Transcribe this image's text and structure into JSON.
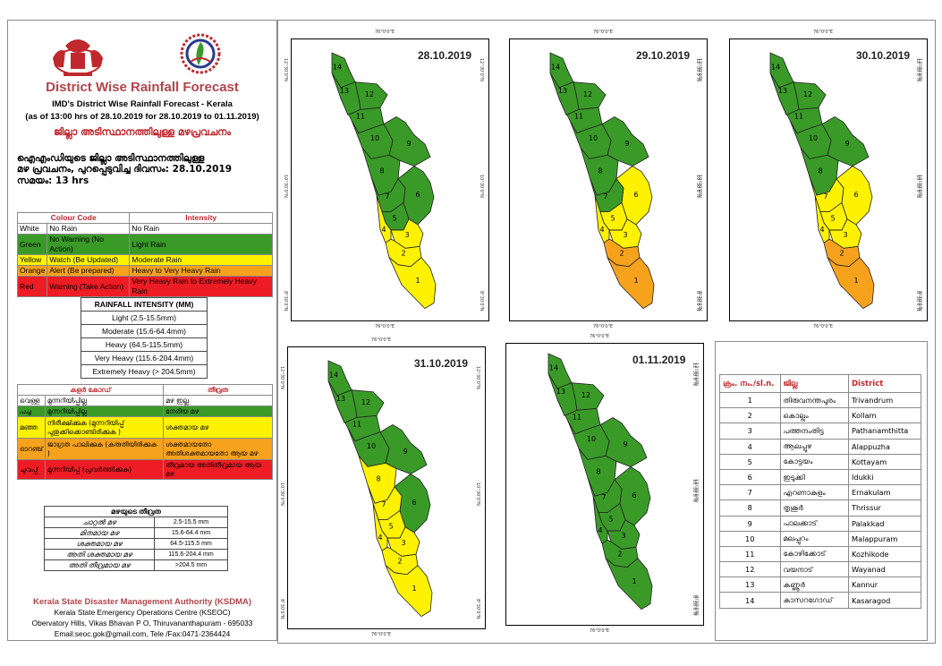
{
  "header": {
    "title": "District Wise Rainfall Forecast",
    "subtitle": "IMD's District Wise Rainfall Forecast - Kerala",
    "range": "(as of 13:00 hrs of 28.10.2019  for 28.10.2019  to 01.11.2019)",
    "mal_title": "ജില്ലാ അടിസ്ഥാനത്തിലുള്ള മഴപ്രവചനം",
    "mal_line1": "ഐഎംഡിയുടെ ജില്ലാ അടിസ്ഥാനത്തിലുള്ള",
    "mal_line2": "മഴ പ്രവചനം, പുറപ്പെടുവിച്ച ദിവസം: 28.10.2019",
    "mal_line3": "സമയം: 13 hrs"
  },
  "colors": {
    "White": "#ffffff",
    "Green": "#3a9a28",
    "Yellow": "#fef200",
    "Orange": "#f7a21d",
    "Red": "#ee1c24",
    "title_red": "#b2454b"
  },
  "legend_en": {
    "headers": [
      "Colour Code",
      "Intensity"
    ],
    "rows": [
      {
        "color": "White",
        "name": "White",
        "warning": "No Rain",
        "intensity": "No Rain"
      },
      {
        "color": "Green",
        "name": "Green",
        "warning": "No Warning (No Action)",
        "intensity": "Light Rain"
      },
      {
        "color": "Yellow",
        "name": "Yellow",
        "warning": "Watch (Be Updated)",
        "intensity": "Moderate Rain"
      },
      {
        "color": "Orange",
        "name": "Orange",
        "warning": "Alert (Be prepared)",
        "intensity": "Heavy to Very Heavy Rain"
      },
      {
        "color": "Red",
        "name": "Red",
        "warning": "Warning (Take Action)",
        "intensity": "Very Heavy Rain to Extremely Heavy Rain"
      }
    ]
  },
  "intensity_en": {
    "header": "RAINFALL INTENSITY (MM)",
    "rows": [
      "Light (2.5-15.5mm)",
      "Moderate (15.6-64.4mm)",
      "Heavy (64.5-115.5mm)",
      "Very Heavy (115.6-204.4mm)",
      "Extremely Heavy (> 204.5mm)"
    ]
  },
  "legend_ml": {
    "headers": [
      "കളർ കോഡ്",
      "തീവ്രത"
    ],
    "rows": [
      {
        "color": "White",
        "name": "വെള്ള",
        "warning": "മുന്നറിയിപ്പില്ല",
        "intensity": "മഴ ഇല്ല"
      },
      {
        "color": "Green",
        "name": "പച്ച",
        "warning": "മുന്നറിയിപ്പില്ല",
        "intensity": "നേരിയ മഴ"
      },
      {
        "color": "Yellow",
        "name": "മഞ്ഞ",
        "warning": "നിരീക്ഷിക്കുക (മുന്നറിയിപ്പ് പുതുക്കിക്കൊണ്ടിരിക്കുക )",
        "intensity": "ശക്തമായ മഴ"
      },
      {
        "color": "Orange",
        "name": "ഓറഞ്ച്",
        "warning": "ജാഗ്രത പാലിക്കുക (കരുതിയിരിക്കുക )",
        "intensity": "ശക്തമായതോ അതിശക്തമായതോ ആയ മഴ"
      },
      {
        "color": "Red",
        "name": "ചുവപ്പ്",
        "warning": "മുന്നറിയിപ്പ് (പ്രവർത്തിക്കുക)",
        "intensity": "തീവ്രമായ അതിതീവ്രമായ ആയ മഴ"
      }
    ]
  },
  "intensity_ml": {
    "header": "മഴയുടെ തീവ്രത",
    "rows": [
      {
        "label": "ചാറ്റൽ മഴ",
        "value": "2.5-15.5 mm"
      },
      {
        "label": "മിതമായ മഴ",
        "value": "15.6-64.4 mm"
      },
      {
        "label": "ശക്തമായ മഴ",
        "value": "64.5-115.5 mm"
      },
      {
        "label": "അതി ശക്തമായ മഴ",
        "value": "115.6-204.4 mm"
      },
      {
        "label": "അതി തീവ്രമായ മഴ",
        "value": ">204.5 mm"
      }
    ]
  },
  "footer": {
    "org": "Kerala State Disaster Management Authority (KSDMA)",
    "line1": "Kerala State Emergency Operations Centre (KSEOC)",
    "line2": "Obervatory Hills, Vikas Bhavan P O, Thiruvananthapuram - 695033",
    "line3": "Email:seoc.gok@gmail.com, Tele /Fax:0471-2364424"
  },
  "maps": {
    "tick_top": "76°0'0\"E",
    "tick_side": [
      "12°30'0\"N",
      "10°30'0\"N",
      "8°30'0\"N"
    ],
    "days": [
      {
        "date": "28.10.2019",
        "districts": {
          "1": "Yellow",
          "2": "Yellow",
          "3": "Yellow",
          "4": "Yellow",
          "5": "Green",
          "6": "Green",
          "7": "Green",
          "8": "Green",
          "9": "Green",
          "10": "Green",
          "11": "Green",
          "12": "Green",
          "13": "Green",
          "14": "Green"
        }
      },
      {
        "date": "29.10.2019",
        "districts": {
          "1": "Orange",
          "2": "Orange",
          "3": "Yellow",
          "4": "Yellow",
          "5": "Yellow",
          "6": "Yellow",
          "7": "Green",
          "8": "Green",
          "9": "Green",
          "10": "Green",
          "11": "Green",
          "12": "Green",
          "13": "Green",
          "14": "Green"
        }
      },
      {
        "date": "30.10.2019",
        "districts": {
          "1": "Orange",
          "2": "Orange",
          "3": "Yellow",
          "4": "Yellow",
          "5": "Yellow",
          "6": "Yellow",
          "7": "Yellow",
          "8": "Green",
          "9": "Green",
          "10": "Green",
          "11": "Green",
          "12": "Green",
          "13": "Green",
          "14": "Green"
        }
      },
      {
        "date": "31.10.2019",
        "districts": {
          "1": "Yellow",
          "2": "Yellow",
          "3": "Yellow",
          "4": "Yellow",
          "5": "Yellow",
          "6": "Green",
          "7": "Yellow",
          "8": "Yellow",
          "9": "Green",
          "10": "Green",
          "11": "Green",
          "12": "Green",
          "13": "Green",
          "14": "Green"
        }
      },
      {
        "date": "01.11.2019",
        "districts": {
          "1": "Green",
          "2": "Green",
          "3": "Green",
          "4": "Green",
          "5": "Green",
          "6": "Green",
          "7": "Green",
          "8": "Green",
          "9": "Green",
          "10": "Green",
          "11": "Green",
          "12": "Green",
          "13": "Green",
          "14": "Green"
        }
      }
    ]
  },
  "district_table": {
    "headers": [
      "ക്രം. നം./sl.n.",
      "ജില്ല",
      "District"
    ],
    "rows": [
      {
        "num": "1",
        "ml": "തിരുവനന്തപുരം",
        "en": "Trivandrum"
      },
      {
        "num": "2",
        "ml": "കൊല്ലം",
        "en": "Kollam"
      },
      {
        "num": "3",
        "ml": "പത്തനംതിട്ട",
        "en": "Pathanamthitta"
      },
      {
        "num": "4",
        "ml": "ആലപ്പുഴ",
        "en": "Alappuzha"
      },
      {
        "num": "5",
        "ml": "കോട്ടയം",
        "en": "Kottayam"
      },
      {
        "num": "6",
        "ml": "ഇടുക്കി",
        "en": "Idukki"
      },
      {
        "num": "7",
        "ml": "എറണാകുളം",
        "en": "Ernakulam"
      },
      {
        "num": "8",
        "ml": "തൃശൂർ",
        "en": "Thrissur"
      },
      {
        "num": "9",
        "ml": "പാലക്കാട്",
        "en": "Palakkad"
      },
      {
        "num": "10",
        "ml": "മലപ്പുറം",
        "en": "Malappuram"
      },
      {
        "num": "11",
        "ml": "കോഴിക്കോട്",
        "en": "Kozhikode"
      },
      {
        "num": "12",
        "ml": "വയനാട്",
        "en": "Wayanad"
      },
      {
        "num": "13",
        "ml": "കണ്ണൂർ",
        "en": "Kannur"
      },
      {
        "num": "14",
        "ml": "കാസറഗോഡ്",
        "en": "Kasaragod"
      }
    ]
  }
}
